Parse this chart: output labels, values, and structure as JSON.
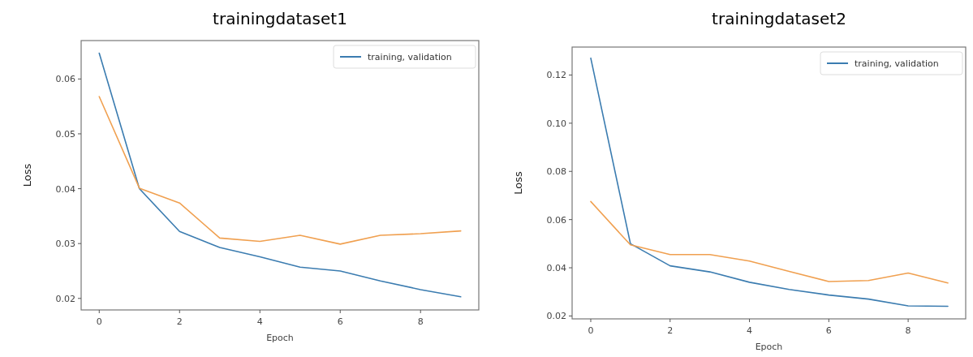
{
  "chart_data": [
    {
      "type": "line",
      "title": "trainingdataset1",
      "xlabel": "Epoch",
      "ylabel": "Loss",
      "x": [
        0,
        1,
        2,
        3,
        4,
        5,
        6,
        7,
        8,
        9
      ],
      "xlim": [
        -0.45,
        9.45
      ],
      "xticks": [
        {
          "value": 0,
          "label": "0"
        },
        {
          "value": 2,
          "label": "2"
        },
        {
          "value": 4,
          "label": "4"
        },
        {
          "value": 6,
          "label": "6"
        },
        {
          "value": 8,
          "label": "8"
        }
      ],
      "ylim": [
        0.0179,
        0.067
      ],
      "yticks": [
        0.02,
        0.03,
        0.04,
        0.05,
        0.06
      ],
      "legend": "top right",
      "series": [
        {
          "name": "training, validation",
          "color": "#3b7cb0",
          "values": [
            0.0647,
            0.04,
            0.0322,
            0.0293,
            0.0276,
            0.0257,
            0.025,
            0.0232,
            0.0216,
            0.0203
          ]
        },
        {
          "color": "#f0a050",
          "values": [
            0.0568,
            0.0401,
            0.0374,
            0.031,
            0.0304,
            0.0315,
            0.0299,
            0.0315,
            0.0318,
            0.0323
          ]
        }
      ]
    },
    {
      "type": "line",
      "title": "trainingdataset2",
      "xlabel": "Epoch",
      "ylabel": "Loss",
      "x": [
        0,
        1,
        2,
        3,
        4,
        5,
        6,
        7,
        8,
        9
      ],
      "xlim": [
        -0.47,
        9.45
      ],
      "xticks": [
        {
          "value": 0,
          "label": "0"
        },
        {
          "value": 2,
          "label": "2"
        },
        {
          "value": 4,
          "label": "4"
        },
        {
          "value": 6,
          "label": "6"
        },
        {
          "value": 8,
          "label": "8"
        }
      ],
      "ylim": [
        0.0188,
        0.1316
      ],
      "yticks": [
        {
          "value": 0.02,
          "label": "0.02"
        },
        {
          "value": 0.04,
          "label": "0.04"
        },
        {
          "value": 0.06,
          "label": "0.06"
        },
        {
          "value": 0.08,
          "label": "0.08"
        },
        {
          "value": 0.1,
          "label": "0.10"
        },
        {
          "value": 0.12,
          "label": "0.12"
        }
      ],
      "legend": "top right",
      "series": [
        {
          "name": "training, validation",
          "color": "#3b7cb0",
          "values": [
            0.127,
            0.05,
            0.0408,
            0.0383,
            0.034,
            0.031,
            0.0287,
            0.027,
            0.0242,
            0.024
          ]
        },
        {
          "color": "#f0a050",
          "values": [
            0.0675,
            0.0495,
            0.0455,
            0.0455,
            0.0428,
            0.0385,
            0.0343,
            0.0347,
            0.0378,
            0.0337
          ]
        }
      ]
    }
  ]
}
